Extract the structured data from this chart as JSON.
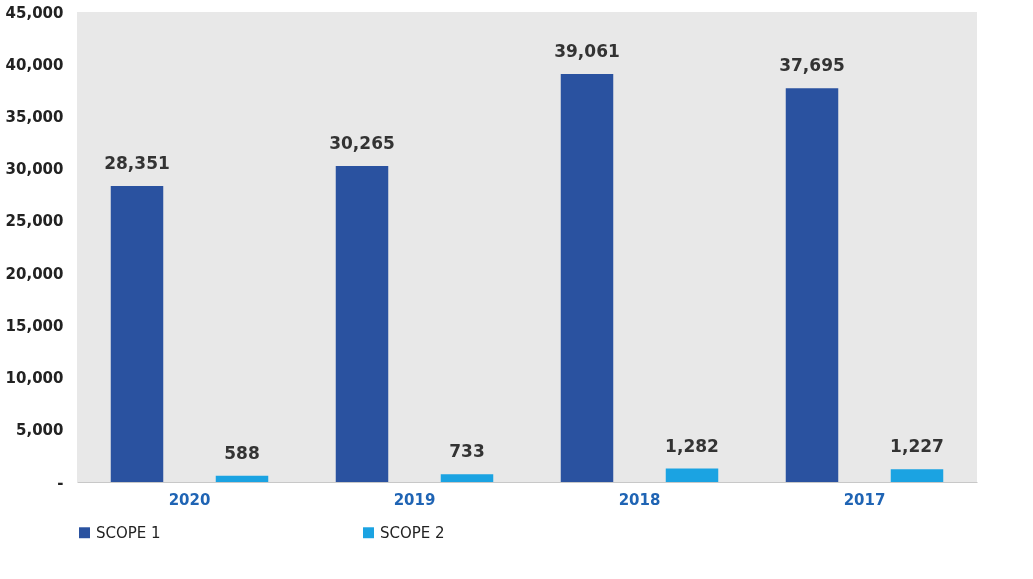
{
  "chart_data": {
    "type": "bar",
    "categories": [
      "2020",
      "2019",
      "2018",
      "2017"
    ],
    "series": [
      {
        "name": "SCOPE 1",
        "color": "#2a52a0",
        "values": [
          28351,
          30265,
          39061,
          37695
        ],
        "value_labels": [
          "28,351",
          "30,265",
          "39,061",
          "37,695"
        ]
      },
      {
        "name": "SCOPE 2",
        "color": "#1ba3e2",
        "values": [
          588,
          733,
          1282,
          1227
        ],
        "value_labels": [
          "588",
          "733",
          "1,282",
          "1,227"
        ]
      }
    ],
    "ylim": [
      0,
      45000
    ],
    "yticks": [
      {
        "value": 0,
        "label": "-"
      },
      {
        "value": 5000,
        "label": "5,000"
      },
      {
        "value": 10000,
        "label": "10,000"
      },
      {
        "value": 15000,
        "label": "15,000"
      },
      {
        "value": 20000,
        "label": "20,000"
      },
      {
        "value": 25000,
        "label": "25,000"
      },
      {
        "value": 30000,
        "label": "30,000"
      },
      {
        "value": 35000,
        "label": "35,000"
      },
      {
        "value": 40000,
        "label": "40,000"
      },
      {
        "value": 45000,
        "label": "45,000"
      }
    ],
    "grid": false,
    "legend": "bottom"
  }
}
